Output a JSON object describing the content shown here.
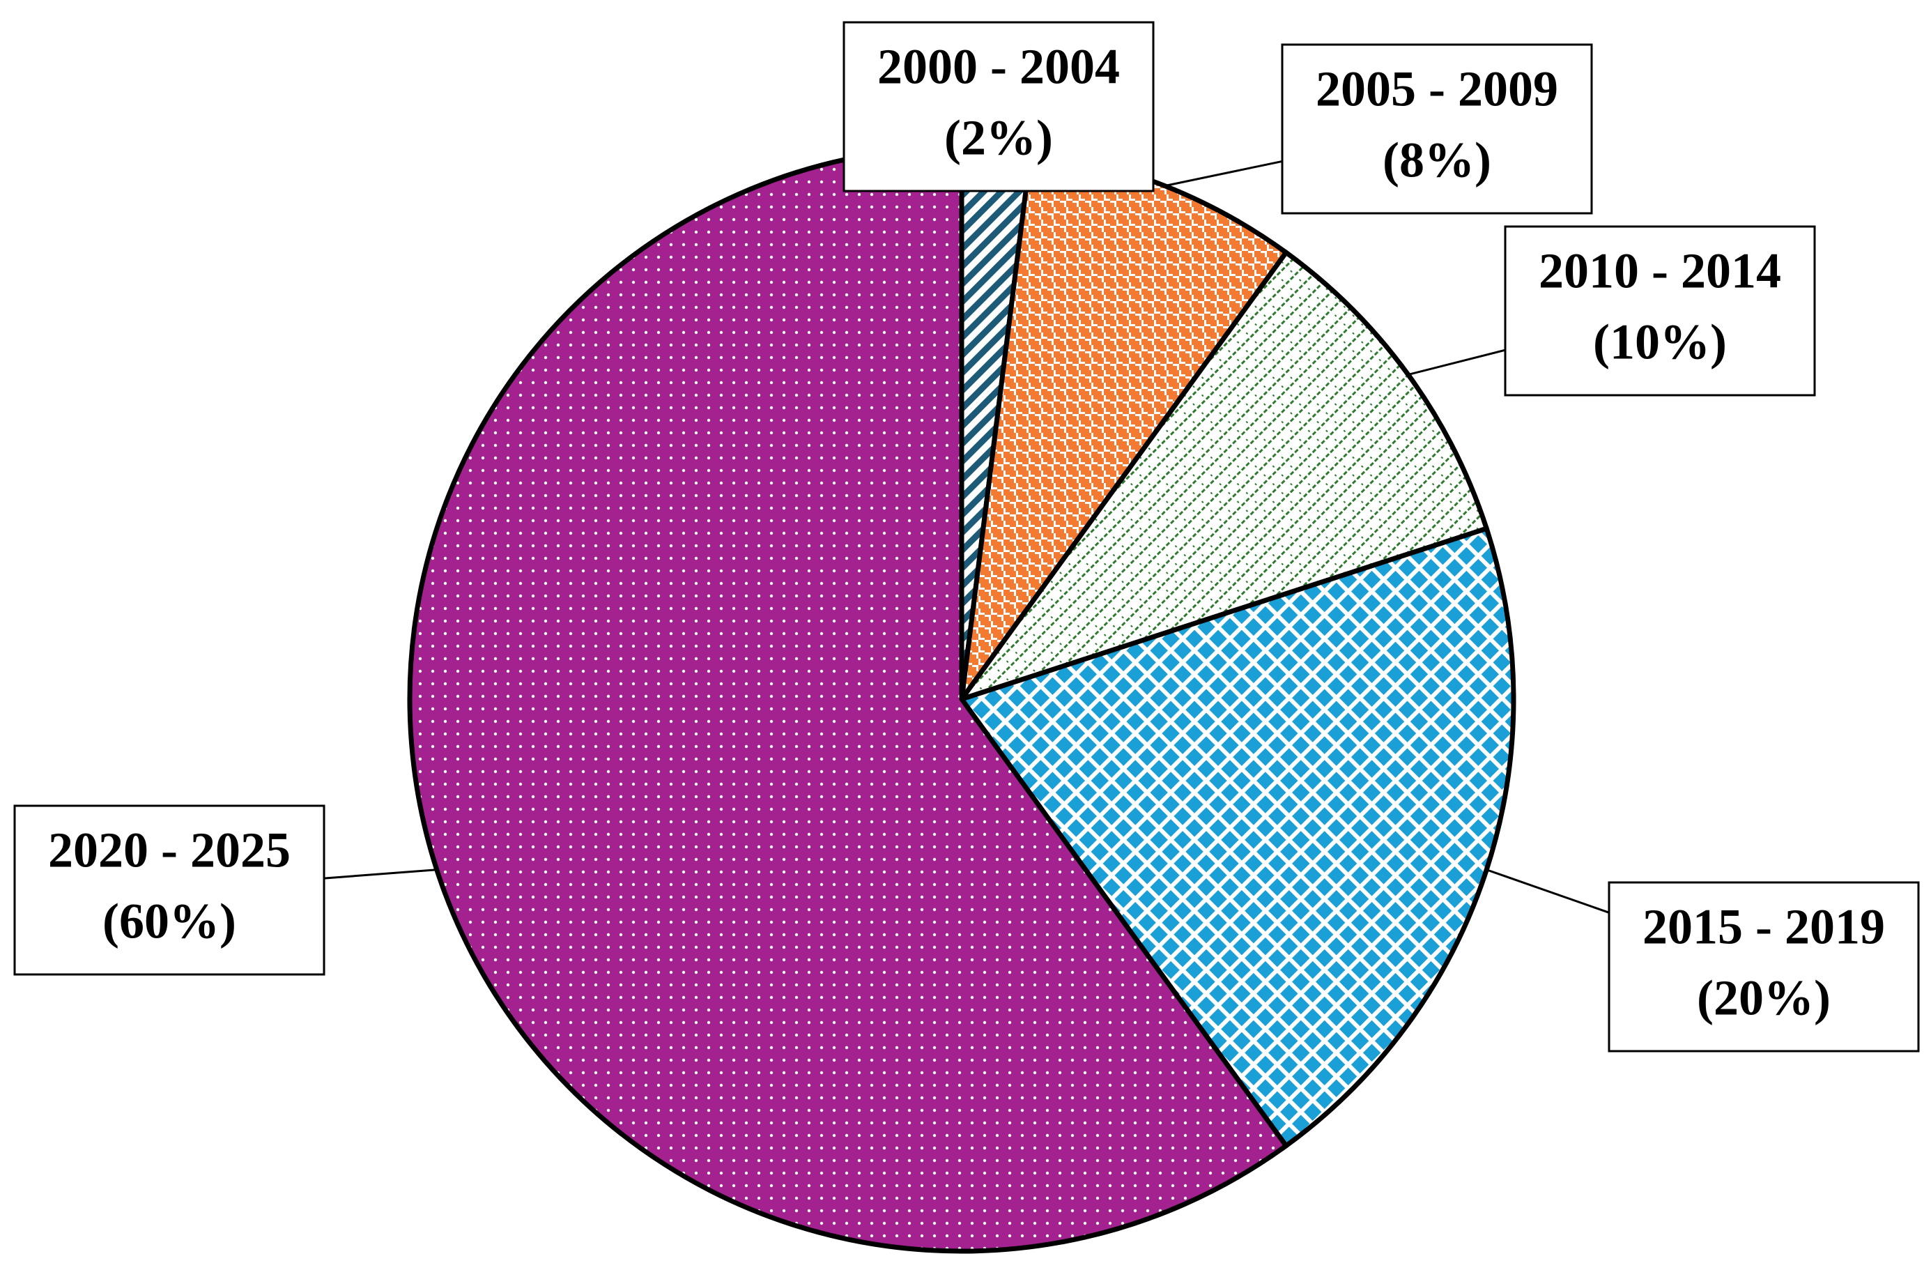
{
  "chart_data": {
    "type": "pie",
    "categories": [
      "2000 - 2004",
      "2005 - 2009",
      "2010 - 2014",
      "2015 - 2019",
      "2020 - 2025"
    ],
    "values": [
      2,
      8,
      10,
      20,
      60
    ],
    "value_labels": [
      "(2%)",
      "(8%)",
      "(10%)",
      "(20%)",
      "(60%)"
    ],
    "colors": [
      "#1d5a78",
      "#f47a32",
      "#2e7a2e",
      "#1a9fd6",
      "#a3228f"
    ]
  }
}
